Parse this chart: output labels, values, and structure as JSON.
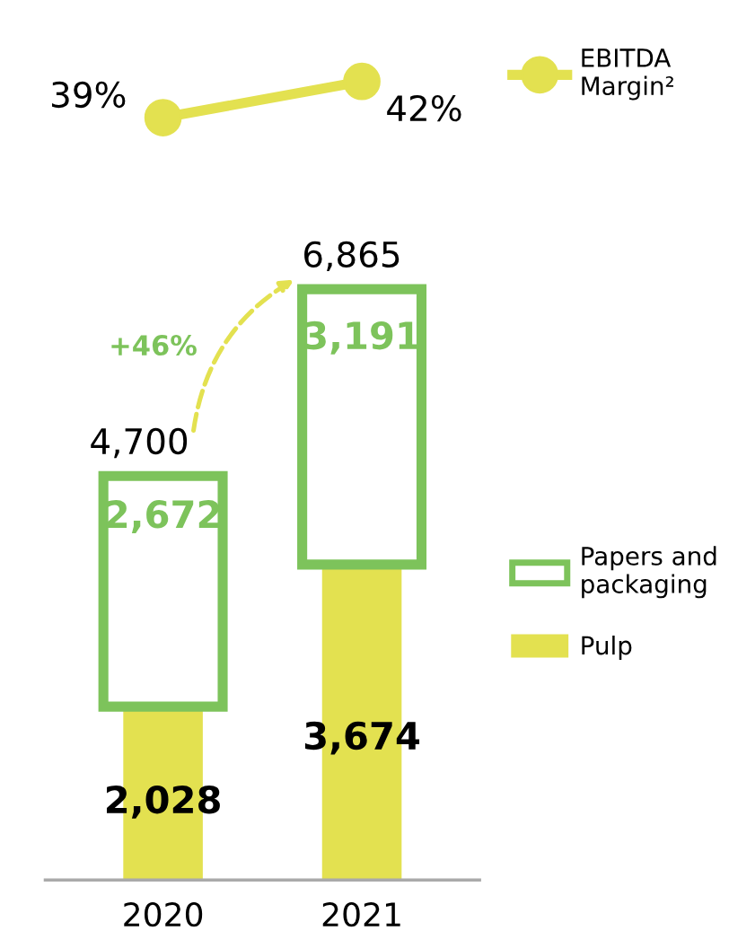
{
  "chart_data": [
    {
      "type": "line",
      "categories": [
        "2020",
        "2021"
      ],
      "tick_labels": false,
      "marker": "circle",
      "legend": "top right",
      "series": [
        {
          "name": "EBITDA Margin²",
          "color": "#e3e150",
          "values": [
            39,
            42
          ],
          "value_labels": [
            "39%",
            "42%"
          ]
        }
      ]
    },
    {
      "type": "bar",
      "stacked": true,
      "categories": [
        "2020",
        "2021"
      ],
      "legend": "right",
      "tick_labels": "x",
      "annotations": [
        "+46%"
      ],
      "totals": [
        "4,700",
        "6,865"
      ],
      "series": [
        {
          "name": "Pulp",
          "color": "#e3e150",
          "values": [
            2028,
            3674
          ],
          "value_labels": [
            "2,028",
            "3,674"
          ]
        },
        {
          "name": "Papers and packaging",
          "color": "#7dc35b",
          "values": [
            2672,
            3191
          ],
          "value_labels": [
            "2,672",
            "3,191"
          ]
        }
      ]
    }
  ]
}
